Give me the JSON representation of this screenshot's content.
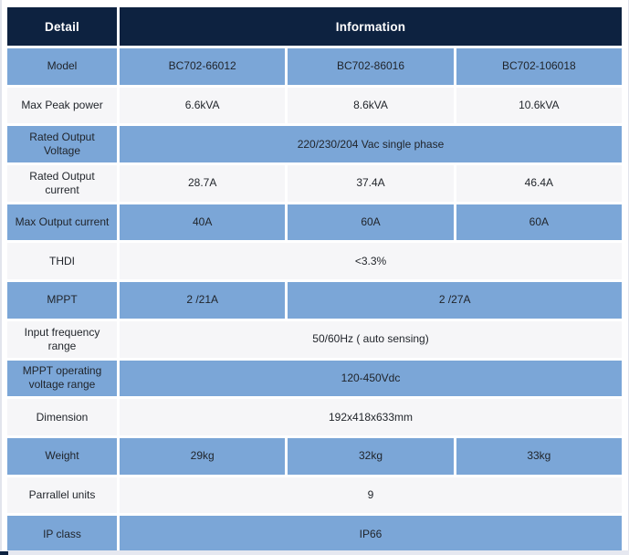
{
  "colors": {
    "header_bg": "#0d2240",
    "blue_cell": "#7ba6d7",
    "white_cell": "#f6f6f8",
    "gap": "#ffffff",
    "header_text": "#ffffff",
    "cell_text": "#1f2329"
  },
  "table": {
    "header": {
      "detail": "Detail",
      "information": "Information"
    },
    "rows": [
      {
        "label": "Model",
        "style": "blue",
        "cells": [
          {
            "text": "BC702-66012",
            "span": 1
          },
          {
            "text": "BC702-86016",
            "span": 1
          },
          {
            "text": "BC702-106018",
            "span": 1
          }
        ]
      },
      {
        "label": "Max Peak power",
        "style": "white",
        "cells": [
          {
            "text": "6.6kVA",
            "span": 1
          },
          {
            "text": "8.6kVA",
            "span": 1
          },
          {
            "text": "10.6kVA",
            "span": 1
          }
        ]
      },
      {
        "label": "Rated Output Voltage",
        "style": "blue",
        "cells": [
          {
            "text": "220/230/204 Vac single phase",
            "span": 3
          }
        ]
      },
      {
        "label": "Rated Output current",
        "style": "white",
        "cells": [
          {
            "text": "28.7A",
            "span": 1
          },
          {
            "text": "37.4A",
            "span": 1
          },
          {
            "text": "46.4A",
            "span": 1
          }
        ]
      },
      {
        "label": "Max Output current",
        "style": "blue",
        "cells": [
          {
            "text": "40A",
            "span": 1
          },
          {
            "text": "60A",
            "span": 1
          },
          {
            "text": "60A",
            "span": 1
          }
        ]
      },
      {
        "label": "THDI",
        "style": "white",
        "cells": [
          {
            "text": "<3.3%",
            "span": 3
          }
        ]
      },
      {
        "label": "MPPT",
        "style": "blue",
        "cells": [
          {
            "text": "2 /21A",
            "span": 1
          },
          {
            "text": "2 /27A",
            "span": 2
          }
        ]
      },
      {
        "label": "Input frequency range",
        "style": "white",
        "cells": [
          {
            "text": "50/60Hz ( auto sensing)",
            "span": 3
          }
        ]
      },
      {
        "label": "MPPT operating voltage range",
        "style": "blue",
        "cells": [
          {
            "text": "120-450Vdc",
            "span": 3
          }
        ]
      },
      {
        "label": "Dimension",
        "style": "white",
        "cells": [
          {
            "text": "192x418x633mm",
            "span": 3
          }
        ]
      },
      {
        "label": "Weight",
        "style": "blue",
        "cells": [
          {
            "text": "29kg",
            "span": 1
          },
          {
            "text": "32kg",
            "span": 1
          },
          {
            "text": "33kg",
            "span": 1
          }
        ]
      },
      {
        "label": "Parrallel units",
        "style": "white",
        "cells": [
          {
            "text": "9",
            "span": 3
          }
        ]
      },
      {
        "label": "IP class",
        "style": "blue",
        "cells": [
          {
            "text": "IP66",
            "span": 3
          }
        ]
      }
    ]
  }
}
